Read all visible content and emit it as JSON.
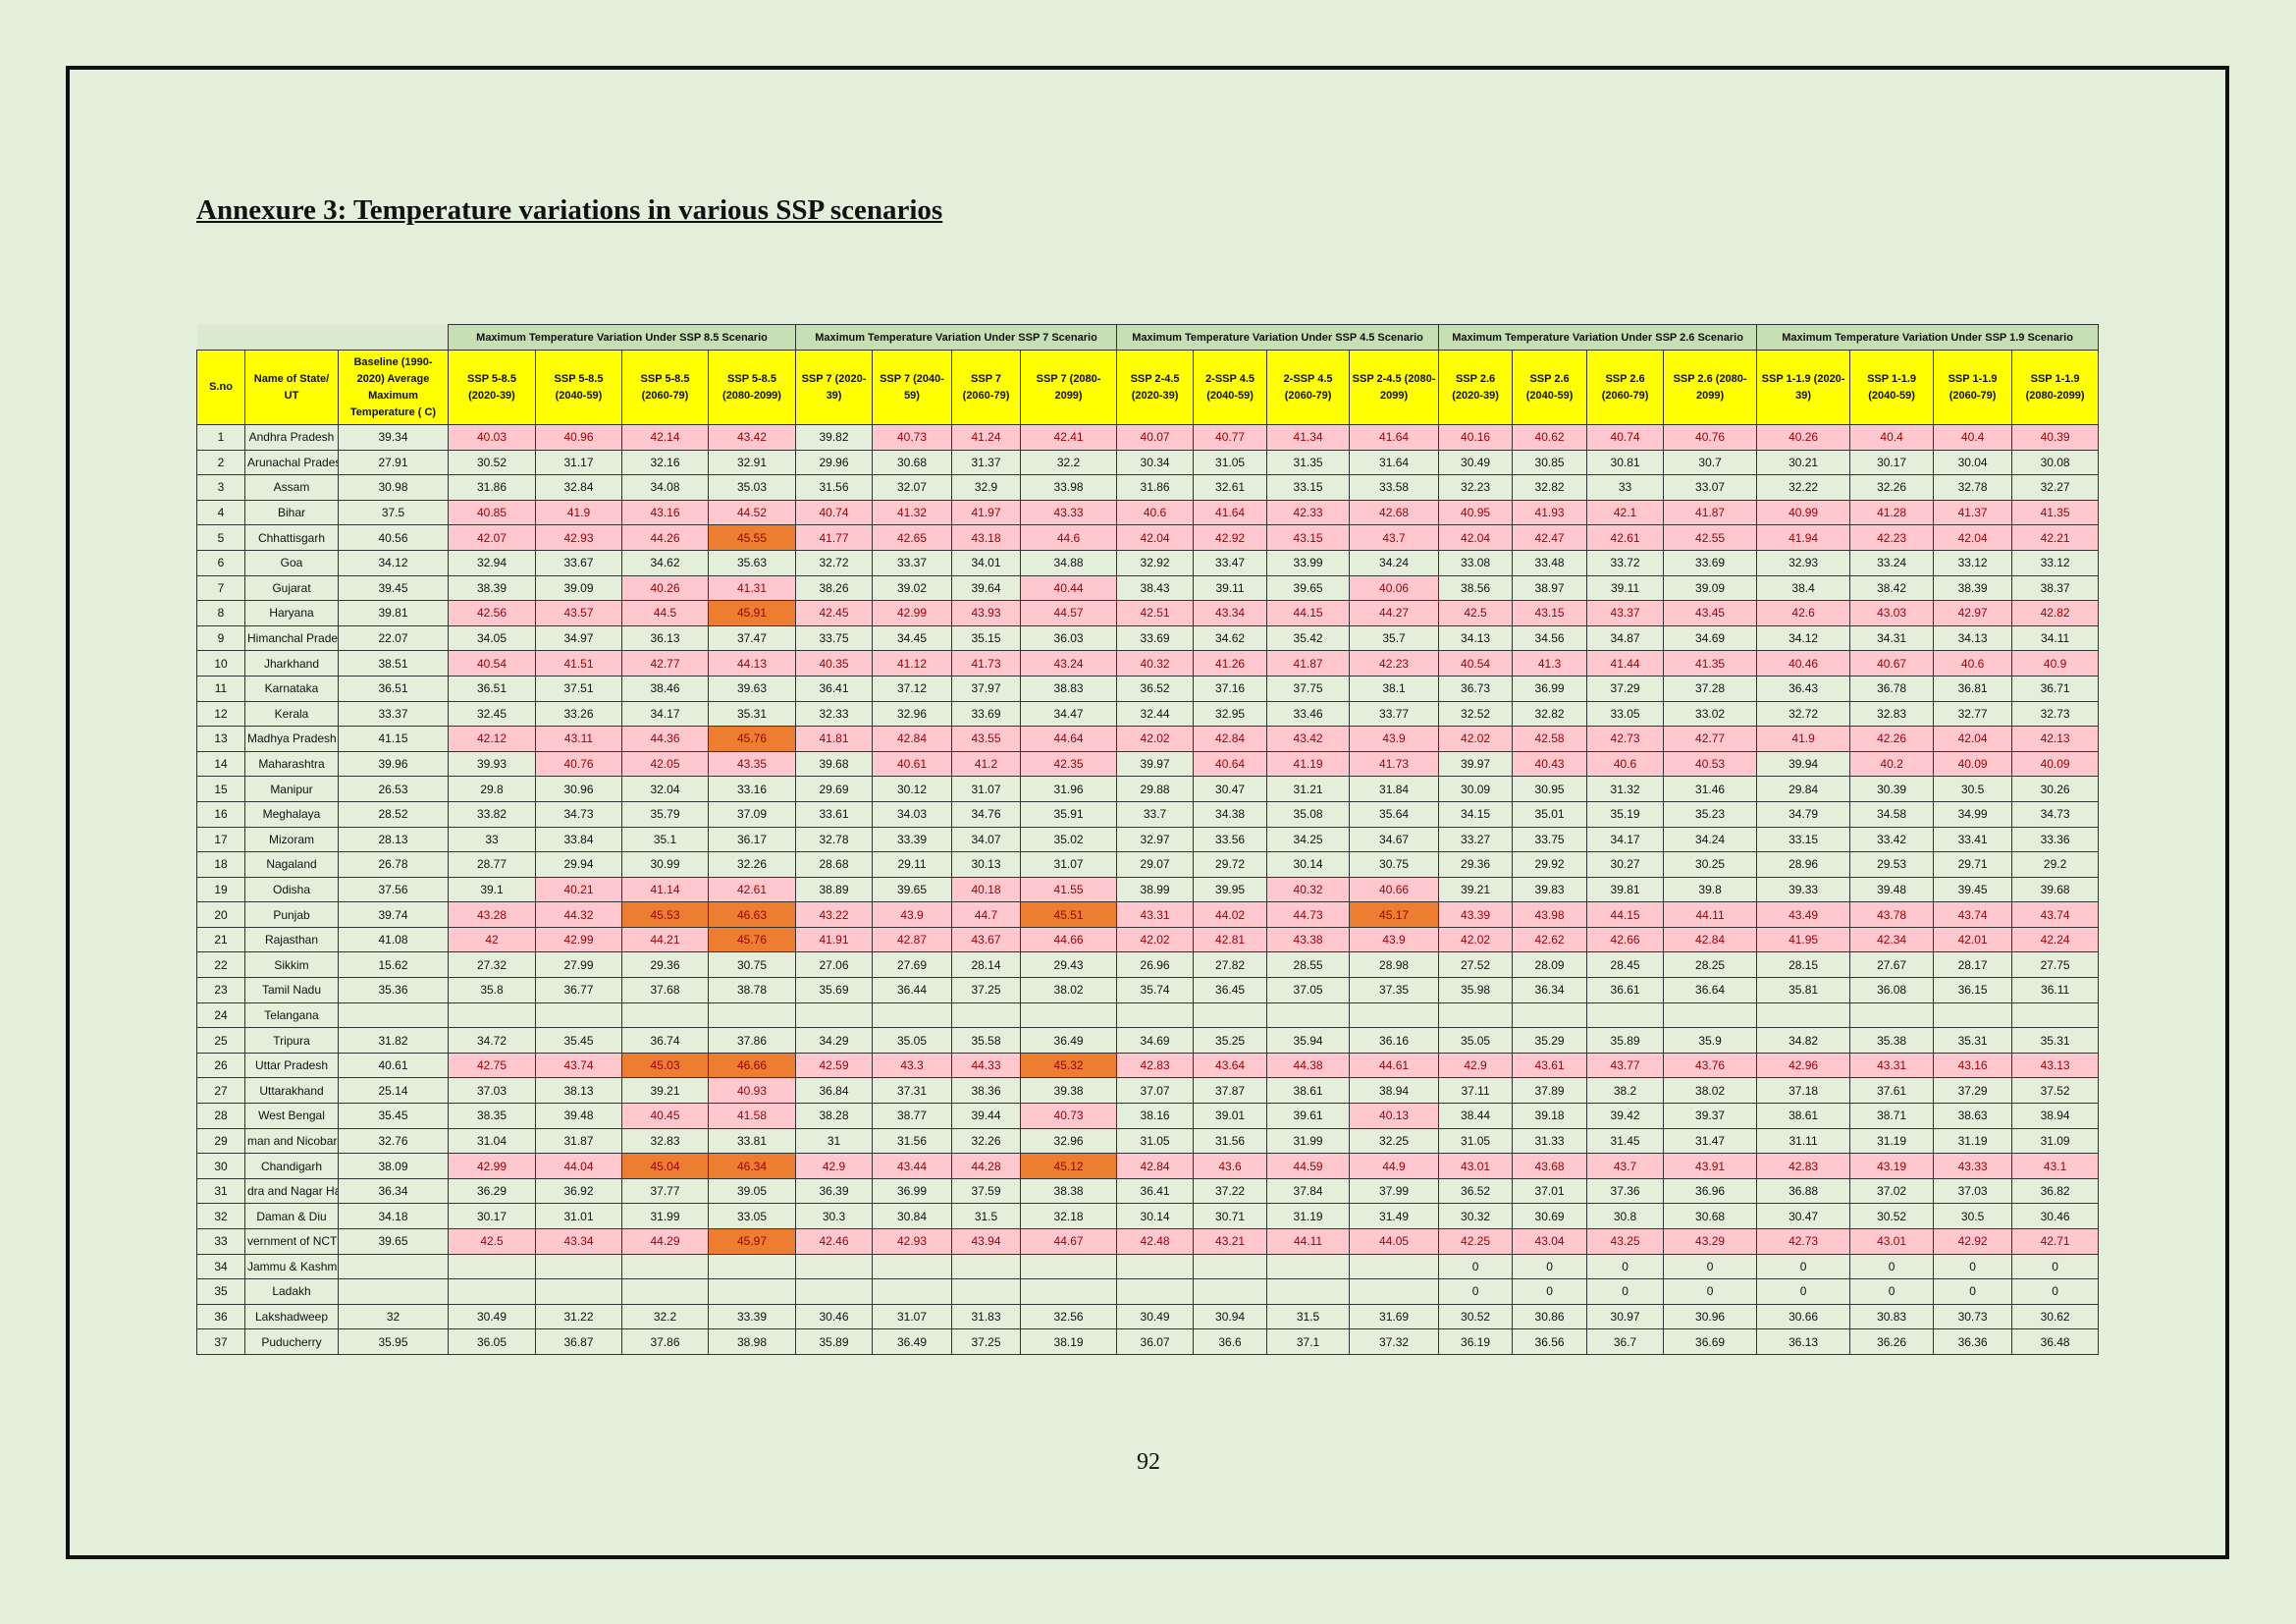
{
  "title": "Annexure 3: Temperature variations in various SSP scenarios",
  "page_number": "92",
  "table": {
    "groups": [
      "Maximum Temperature Variation Under SSP 8.5 Scenario",
      "Maximum Temperature Variation Under SSP 7 Scenario",
      "Maximum Temperature Variation Under SSP 4.5 Scenario",
      "Maximum Temperature Variation Under SSP 2.6 Scenario",
      "Maximum Temperature Variation Under SSP 1.9 Scenario"
    ],
    "columns": [
      "S.no",
      "Name of State/ UT",
      "Baseline (1990-2020) Average Maximum Temperature ( C)",
      "SSP 5-8.5 (2020-39)",
      "SSP 5-8.5 (2040-59)",
      "SSP 5-8.5 (2060-79)",
      "SSP 5-8.5 (2080-2099)",
      "SSP 7 (2020-39)",
      "SSP 7 (2040-59)",
      "SSP 7 (2060-79)",
      "SSP 7 (2080-2099)",
      "SSP 2-4.5 (2020-39)",
      "2-SSP 4.5 (2040-59)",
      "2-SSP 4.5 (2060-79)",
      "SSP 2-4.5 (2080-2099)",
      "SSP 2.6 (2020-39)",
      "SSP 2.6 (2040-59)",
      "SSP 2.6 (2060-79)",
      "SSP 2.6 (2080-2099)",
      "SSP 1-1.9 (2020-39)",
      "SSP 1-1.9 (2040-59)",
      "SSP 1-1.9 (2060-79)",
      "SSP 1-1.9 (2080-2099)"
    ],
    "rows": [
      [
        1,
        "Andhra Pradesh",
        39.34,
        40.03,
        40.96,
        42.14,
        43.42,
        39.82,
        40.73,
        41.24,
        42.41,
        40.07,
        40.77,
        41.34,
        41.64,
        40.16,
        40.62,
        40.74,
        40.76,
        40.26,
        40.4,
        40.4,
        40.39
      ],
      [
        2,
        "Arunachal Pradesh",
        27.91,
        30.52,
        31.17,
        32.16,
        32.91,
        29.96,
        30.68,
        31.37,
        32.2,
        30.34,
        31.05,
        31.35,
        31.64,
        30.49,
        30.85,
        30.81,
        30.7,
        30.21,
        30.17,
        30.04,
        30.08
      ],
      [
        3,
        "Assam",
        30.98,
        31.86,
        32.84,
        34.08,
        35.03,
        31.56,
        32.07,
        32.9,
        33.98,
        31.86,
        32.61,
        33.15,
        33.58,
        32.23,
        32.82,
        33,
        33.07,
        32.22,
        32.26,
        32.78,
        32.27
      ],
      [
        4,
        "Bihar",
        37.5,
        40.85,
        41.9,
        43.16,
        44.52,
        40.74,
        41.32,
        41.97,
        43.33,
        40.6,
        41.64,
        42.33,
        42.68,
        40.95,
        41.93,
        42.1,
        41.87,
        40.99,
        41.28,
        41.37,
        41.35
      ],
      [
        5,
        "Chhattisgarh",
        40.56,
        42.07,
        42.93,
        44.26,
        45.55,
        41.77,
        42.65,
        43.18,
        44.6,
        42.04,
        42.92,
        43.15,
        43.7,
        42.04,
        42.47,
        42.61,
        42.55,
        41.94,
        42.23,
        42.04,
        42.21
      ],
      [
        6,
        "Goa",
        34.12,
        32.94,
        33.67,
        34.62,
        35.63,
        32.72,
        33.37,
        34.01,
        34.88,
        32.92,
        33.47,
        33.99,
        34.24,
        33.08,
        33.48,
        33.72,
        33.69,
        32.93,
        33.24,
        33.12,
        33.12
      ],
      [
        7,
        "Gujarat",
        39.45,
        38.39,
        39.09,
        40.26,
        41.31,
        38.26,
        39.02,
        39.64,
        40.44,
        38.43,
        39.11,
        39.65,
        40.06,
        38.56,
        38.97,
        39.11,
        39.09,
        38.4,
        38.42,
        38.39,
        38.37
      ],
      [
        8,
        "Haryana",
        39.81,
        42.56,
        43.57,
        44.5,
        45.91,
        42.45,
        42.99,
        43.93,
        44.57,
        42.51,
        43.34,
        44.15,
        44.27,
        42.5,
        43.15,
        43.37,
        43.45,
        42.6,
        43.03,
        42.97,
        42.82
      ],
      [
        9,
        "Himanchal Pradesh",
        22.07,
        34.05,
        34.97,
        36.13,
        37.47,
        33.75,
        34.45,
        35.15,
        36.03,
        33.69,
        34.62,
        35.42,
        35.7,
        34.13,
        34.56,
        34.87,
        34.69,
        34.12,
        34.31,
        34.13,
        34.11
      ],
      [
        10,
        "Jharkhand",
        38.51,
        40.54,
        41.51,
        42.77,
        44.13,
        40.35,
        41.12,
        41.73,
        43.24,
        40.32,
        41.26,
        41.87,
        42.23,
        40.54,
        41.3,
        41.44,
        41.35,
        40.46,
        40.67,
        40.6,
        40.9
      ],
      [
        11,
        "Karnataka",
        36.51,
        36.51,
        37.51,
        38.46,
        39.63,
        36.41,
        37.12,
        37.97,
        38.83,
        36.52,
        37.16,
        37.75,
        38.1,
        36.73,
        36.99,
        37.29,
        37.28,
        36.43,
        36.78,
        36.81,
        36.71
      ],
      [
        12,
        "Kerala",
        33.37,
        32.45,
        33.26,
        34.17,
        35.31,
        32.33,
        32.96,
        33.69,
        34.47,
        32.44,
        32.95,
        33.46,
        33.77,
        32.52,
        32.82,
        33.05,
        33.02,
        32.72,
        32.83,
        32.77,
        32.73
      ],
      [
        13,
        "Madhya Pradesh",
        41.15,
        42.12,
        43.11,
        44.36,
        45.76,
        41.81,
        42.84,
        43.55,
        44.64,
        42.02,
        42.84,
        43.42,
        43.9,
        42.02,
        42.58,
        42.73,
        42.77,
        41.9,
        42.26,
        42.04,
        42.13
      ],
      [
        14,
        "Maharashtra",
        39.96,
        39.93,
        40.76,
        42.05,
        43.35,
        39.68,
        40.61,
        41.2,
        42.35,
        39.97,
        40.64,
        41.19,
        41.73,
        39.97,
        40.43,
        40.6,
        40.53,
        39.94,
        40.2,
        40.09,
        40.09
      ],
      [
        15,
        "Manipur",
        26.53,
        29.8,
        30.96,
        32.04,
        33.16,
        29.69,
        30.12,
        31.07,
        31.96,
        29.88,
        30.47,
        31.21,
        31.84,
        30.09,
        30.95,
        31.32,
        31.46,
        29.84,
        30.39,
        30.5,
        30.26
      ],
      [
        16,
        "Meghalaya",
        28.52,
        33.82,
        34.73,
        35.79,
        37.09,
        33.61,
        34.03,
        34.76,
        35.91,
        33.7,
        34.38,
        35.08,
        35.64,
        34.15,
        35.01,
        35.19,
        35.23,
        34.79,
        34.58,
        34.99,
        34.73
      ],
      [
        17,
        "Mizoram",
        28.13,
        33,
        33.84,
        35.1,
        36.17,
        32.78,
        33.39,
        34.07,
        35.02,
        32.97,
        33.56,
        34.25,
        34.67,
        33.27,
        33.75,
        34.17,
        34.24,
        33.15,
        33.42,
        33.41,
        33.36
      ],
      [
        18,
        "Nagaland",
        26.78,
        28.77,
        29.94,
        30.99,
        32.26,
        28.68,
        29.11,
        30.13,
        31.07,
        29.07,
        29.72,
        30.14,
        30.75,
        29.36,
        29.92,
        30.27,
        30.25,
        28.96,
        29.53,
        29.71,
        29.2
      ],
      [
        19,
        "Odisha",
        37.56,
        39.1,
        40.21,
        41.14,
        42.61,
        38.89,
        39.65,
        40.18,
        41.55,
        38.99,
        39.95,
        40.32,
        40.66,
        39.21,
        39.83,
        39.81,
        39.8,
        39.33,
        39.48,
        39.45,
        39.68
      ],
      [
        20,
        "Punjab",
        39.74,
        43.28,
        44.32,
        45.53,
        46.63,
        43.22,
        43.9,
        44.7,
        45.51,
        43.31,
        44.02,
        44.73,
        45.17,
        43.39,
        43.98,
        44.15,
        44.11,
        43.49,
        43.78,
        43.74,
        43.74
      ],
      [
        21,
        "Rajasthan",
        41.08,
        42,
        42.99,
        44.21,
        45.76,
        41.91,
        42.87,
        43.67,
        44.66,
        42.02,
        42.81,
        43.38,
        43.9,
        42.02,
        42.62,
        42.66,
        42.84,
        41.95,
        42.34,
        42.01,
        42.24
      ],
      [
        22,
        "Sikkim",
        15.62,
        27.32,
        27.99,
        29.36,
        30.75,
        27.06,
        27.69,
        28.14,
        29.43,
        26.96,
        27.82,
        28.55,
        28.98,
        27.52,
        28.09,
        28.45,
        28.25,
        28.15,
        27.67,
        28.17,
        27.75
      ],
      [
        23,
        "Tamil Nadu",
        35.36,
        35.8,
        36.77,
        37.68,
        38.78,
        35.69,
        36.44,
        37.25,
        38.02,
        35.74,
        36.45,
        37.05,
        37.35,
        35.98,
        36.34,
        36.61,
        36.64,
        35.81,
        36.08,
        36.15,
        36.11
      ],
      [
        24,
        "Telangana",
        null,
        null,
        null,
        null,
        null,
        null,
        null,
        null,
        null,
        null,
        null,
        null,
        null,
        null,
        null,
        null,
        null,
        null,
        null,
        null,
        null
      ],
      [
        25,
        "Tripura",
        31.82,
        34.72,
        35.45,
        36.74,
        37.86,
        34.29,
        35.05,
        35.58,
        36.49,
        34.69,
        35.25,
        35.94,
        36.16,
        35.05,
        35.29,
        35.89,
        35.9,
        34.82,
        35.38,
        35.31,
        35.31
      ],
      [
        26,
        "Uttar Pradesh",
        40.61,
        42.75,
        43.74,
        45.03,
        46.66,
        42.59,
        43.3,
        44.33,
        45.32,
        42.83,
        43.64,
        44.38,
        44.61,
        42.9,
        43.61,
        43.77,
        43.76,
        42.96,
        43.31,
        43.16,
        43.13
      ],
      [
        27,
        "Uttarakhand",
        25.14,
        37.03,
        38.13,
        39.21,
        40.93,
        36.84,
        37.31,
        38.36,
        39.38,
        37.07,
        37.87,
        38.61,
        38.94,
        37.11,
        37.89,
        38.2,
        38.02,
        37.18,
        37.61,
        37.29,
        37.52
      ],
      [
        28,
        "West Bengal",
        35.45,
        38.35,
        39.48,
        40.45,
        41.58,
        38.28,
        38.77,
        39.44,
        40.73,
        38.16,
        39.01,
        39.61,
        40.13,
        38.44,
        39.18,
        39.42,
        39.37,
        38.61,
        38.71,
        38.63,
        38.94
      ],
      [
        29,
        "man and Nicobar Isl",
        32.76,
        31.04,
        31.87,
        32.83,
        33.81,
        31,
        31.56,
        32.26,
        32.96,
        31.05,
        31.56,
        31.99,
        32.25,
        31.05,
        31.33,
        31.45,
        31.47,
        31.11,
        31.19,
        31.19,
        31.09
      ],
      [
        30,
        "Chandigarh",
        38.09,
        42.99,
        44.04,
        45.04,
        46.34,
        42.9,
        43.44,
        44.28,
        45.12,
        42.84,
        43.6,
        44.59,
        44.9,
        43.01,
        43.68,
        43.7,
        43.91,
        42.83,
        43.19,
        43.33,
        43.1
      ],
      [
        31,
        "dra and Nagar Have",
        36.34,
        36.29,
        36.92,
        37.77,
        39.05,
        36.39,
        36.99,
        37.59,
        38.38,
        36.41,
        37.22,
        37.84,
        37.99,
        36.52,
        37.01,
        37.36,
        36.96,
        36.88,
        37.02,
        37.03,
        36.82
      ],
      [
        32,
        "Daman & Diu",
        34.18,
        30.17,
        31.01,
        31.99,
        33.05,
        30.3,
        30.84,
        31.5,
        32.18,
        30.14,
        30.71,
        31.19,
        31.49,
        30.32,
        30.69,
        30.8,
        30.68,
        30.47,
        30.52,
        30.5,
        30.46
      ],
      [
        33,
        "vernment of NCT of",
        39.65,
        42.5,
        43.34,
        44.29,
        45.97,
        42.46,
        42.93,
        43.94,
        44.67,
        42.48,
        43.21,
        44.11,
        44.05,
        42.25,
        43.04,
        43.25,
        43.29,
        42.73,
        43.01,
        42.92,
        42.71
      ],
      [
        34,
        "Jammu & Kashmir",
        null,
        null,
        null,
        null,
        null,
        null,
        null,
        null,
        null,
        null,
        null,
        null,
        null,
        0,
        0,
        0,
        0,
        0,
        0,
        0,
        0
      ],
      [
        35,
        "Ladakh",
        null,
        null,
        null,
        null,
        null,
        null,
        null,
        null,
        null,
        null,
        null,
        null,
        null,
        0,
        0,
        0,
        0,
        0,
        0,
        0,
        0
      ],
      [
        36,
        "Lakshadweep",
        32,
        30.49,
        31.22,
        32.2,
        33.39,
        30.46,
        31.07,
        31.83,
        32.56,
        30.49,
        30.94,
        31.5,
        31.69,
        30.52,
        30.86,
        30.97,
        30.96,
        30.66,
        30.83,
        30.73,
        30.62
      ],
      [
        37,
        "Puducherry",
        35.95,
        36.05,
        36.87,
        37.86,
        38.98,
        35.89,
        36.49,
        37.25,
        38.19,
        36.07,
        36.6,
        37.1,
        37.32,
        36.19,
        36.56,
        36.7,
        36.69,
        36.13,
        36.26,
        36.36,
        36.48
      ]
    ]
  }
}
